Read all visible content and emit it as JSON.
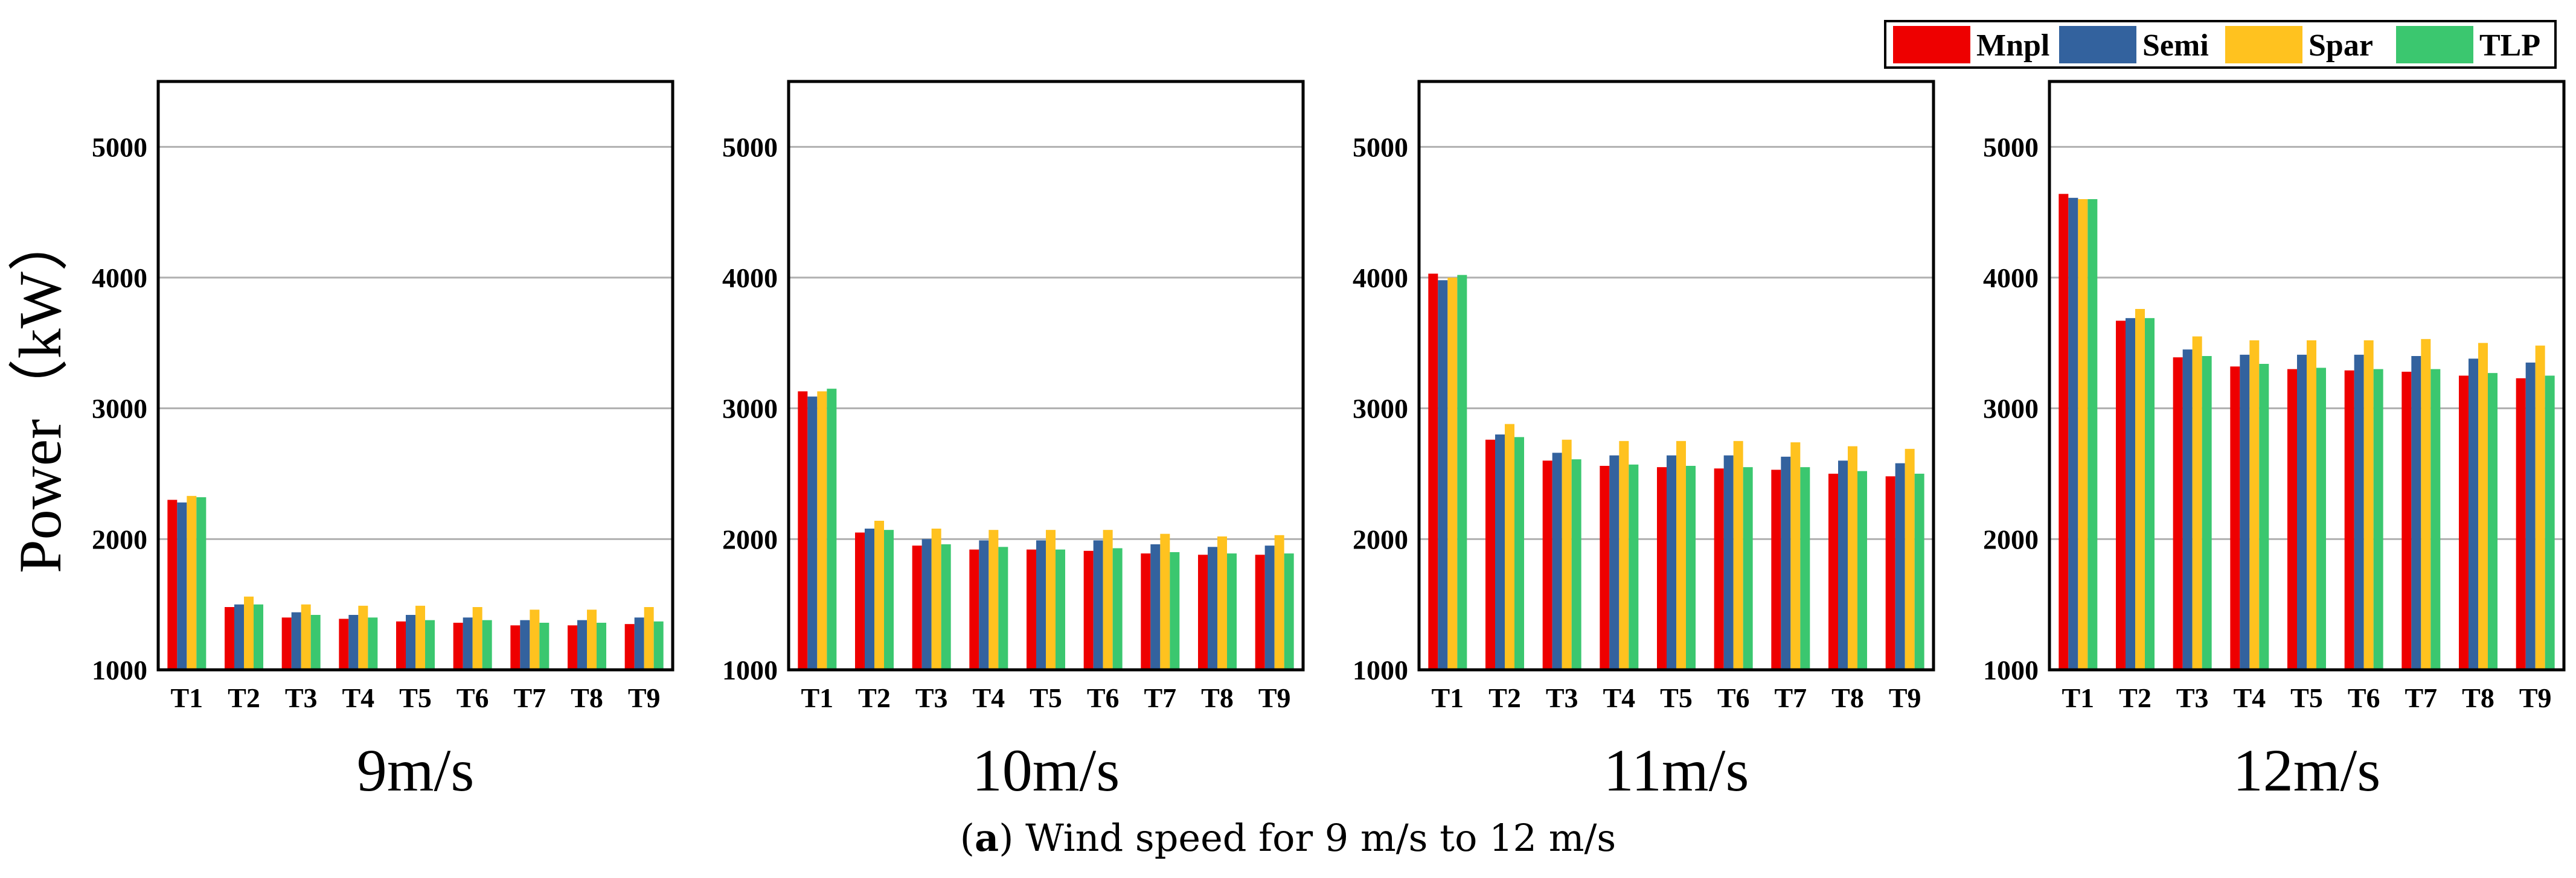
{
  "caption": {
    "open": "(",
    "letter": "a",
    "close": ")",
    "text": " Wind speed for 9 m/s to 12 m/s"
  },
  "colors": {
    "Mnpl": "#ee0000",
    "Semi": "#33629e",
    "Spar": "#ffc21f",
    "TLP": "#3bc76f",
    "grid": "#b0b0b0"
  },
  "chart_data": [
    {
      "type": "bar",
      "title": "9m/s",
      "ylabel": "Power（kW）",
      "categories": [
        "T1",
        "T2",
        "T3",
        "T4",
        "T5",
        "T6",
        "T7",
        "T8",
        "T9"
      ],
      "ylim": [
        1000,
        5500
      ],
      "yticks": [
        "1000",
        "2000",
        "3000",
        "4000",
        "5000"
      ],
      "series": [
        {
          "name": "Mnpl",
          "values": [
            2300,
            1480,
            1400,
            1390,
            1370,
            1360,
            1340,
            1340,
            1350
          ]
        },
        {
          "name": "Semi",
          "values": [
            2280,
            1500,
            1440,
            1420,
            1420,
            1400,
            1380,
            1380,
            1400
          ]
        },
        {
          "name": "Spar",
          "values": [
            2330,
            1560,
            1500,
            1490,
            1490,
            1480,
            1460,
            1460,
            1480
          ]
        },
        {
          "name": "TLP",
          "values": [
            2320,
            1500,
            1420,
            1400,
            1380,
            1380,
            1360,
            1360,
            1370
          ]
        }
      ]
    },
    {
      "type": "bar",
      "title": "10m/s",
      "categories": [
        "T1",
        "T2",
        "T3",
        "T4",
        "T5",
        "T6",
        "T7",
        "T8",
        "T9"
      ],
      "ylim": [
        1000,
        5500
      ],
      "yticks": [
        "1000",
        "2000",
        "3000",
        "4000",
        "5000"
      ],
      "series": [
        {
          "name": "Mnpl",
          "values": [
            3130,
            2050,
            1950,
            1920,
            1920,
            1910,
            1890,
            1880,
            1880
          ]
        },
        {
          "name": "Semi",
          "values": [
            3090,
            2080,
            2000,
            1990,
            1990,
            1990,
            1960,
            1940,
            1950
          ]
        },
        {
          "name": "Spar",
          "values": [
            3130,
            2140,
            2080,
            2070,
            2070,
            2070,
            2040,
            2020,
            2030
          ]
        },
        {
          "name": "TLP",
          "values": [
            3150,
            2070,
            1960,
            1940,
            1920,
            1930,
            1900,
            1890,
            1890
          ]
        }
      ]
    },
    {
      "type": "bar",
      "title": "11m/s",
      "categories": [
        "T1",
        "T2",
        "T3",
        "T4",
        "T5",
        "T6",
        "T7",
        "T8",
        "T9"
      ],
      "ylim": [
        1000,
        5500
      ],
      "yticks": [
        "1000",
        "2000",
        "3000",
        "4000",
        "5000"
      ],
      "series": [
        {
          "name": "Mnpl",
          "values": [
            4030,
            2760,
            2600,
            2560,
            2550,
            2540,
            2530,
            2500,
            2480
          ]
        },
        {
          "name": "Semi",
          "values": [
            3980,
            2800,
            2660,
            2640,
            2640,
            2640,
            2630,
            2600,
            2580
          ]
        },
        {
          "name": "Spar",
          "values": [
            4000,
            2880,
            2760,
            2750,
            2750,
            2750,
            2740,
            2710,
            2690
          ]
        },
        {
          "name": "TLP",
          "values": [
            4020,
            2780,
            2610,
            2570,
            2560,
            2550,
            2550,
            2520,
            2500
          ]
        }
      ]
    },
    {
      "type": "bar",
      "title": "12m/s",
      "categories": [
        "T1",
        "T2",
        "T3",
        "T4",
        "T5",
        "T6",
        "T7",
        "T8",
        "T9"
      ],
      "ylim": [
        1000,
        5500
      ],
      "yticks": [
        "1000",
        "2000",
        "3000",
        "4000",
        "5000"
      ],
      "series": [
        {
          "name": "Mnpl",
          "values": [
            4640,
            3670,
            3390,
            3320,
            3300,
            3290,
            3280,
            3250,
            3230
          ]
        },
        {
          "name": "Semi",
          "values": [
            4610,
            3690,
            3450,
            3410,
            3410,
            3410,
            3400,
            3380,
            3350
          ]
        },
        {
          "name": "Spar",
          "values": [
            4600,
            3760,
            3550,
            3520,
            3520,
            3520,
            3530,
            3500,
            3480
          ]
        },
        {
          "name": "TLP",
          "values": [
            4600,
            3690,
            3400,
            3340,
            3310,
            3300,
            3300,
            3270,
            3250
          ]
        }
      ]
    }
  ],
  "legend": [
    "Mnpl",
    "Semi",
    "Spar",
    "TLP"
  ]
}
